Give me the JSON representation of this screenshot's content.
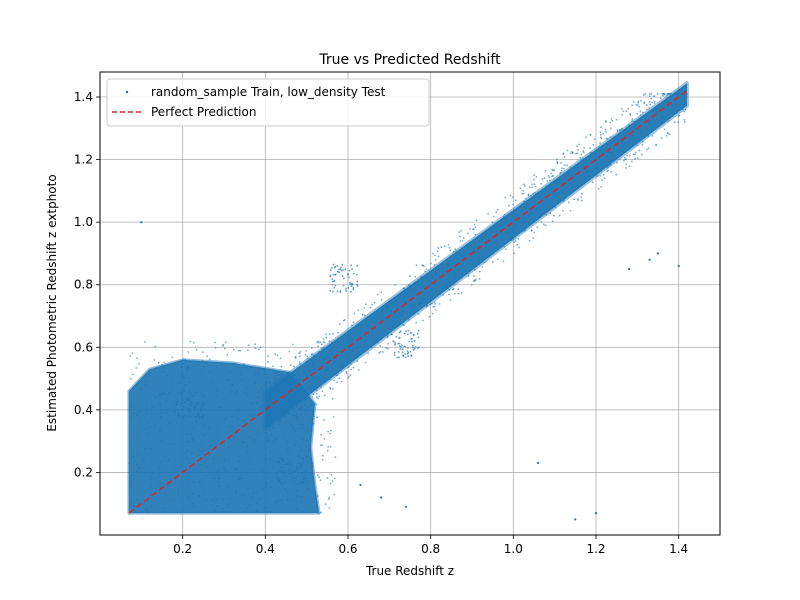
{
  "chart_data": {
    "type": "scatter",
    "title": "True vs Predicted Redshift",
    "xlabel": "True Redshift z",
    "ylabel": "Estimated Photometric Redshift z extphoto",
    "xlim": [
      0.0,
      1.5
    ],
    "ylim": [
      0.0,
      1.48
    ],
    "xticks": [
      "0.2",
      "0.4",
      "0.6",
      "0.8",
      "1.0",
      "1.2",
      "1.4"
    ],
    "yticks": [
      "0.2",
      "0.4",
      "0.6",
      "0.8",
      "1.0",
      "1.2",
      "1.4"
    ],
    "grid": true,
    "legend_position": "top-left",
    "series": [
      {
        "name": "random_sample Train, low_density Test",
        "kind": "scatter",
        "color": "#1f77b4",
        "regions": [
          {
            "shape": "polygon",
            "vertices": [
              [
                0.07,
                0.07
              ],
              [
                0.53,
                0.07
              ],
              [
                0.52,
                0.16
              ],
              [
                0.51,
                0.28
              ],
              [
                0.52,
                0.42
              ],
              [
                0.46,
                0.52
              ],
              [
                0.32,
                0.55
              ],
              [
                0.2,
                0.56
              ],
              [
                0.12,
                0.53
              ],
              [
                0.07,
                0.46
              ]
            ]
          },
          {
            "shape": "band",
            "x_range": [
              0.4,
              1.42
            ],
            "center": "y = x",
            "half_width": 0.06
          }
        ],
        "clumps": [
          {
            "x": 0.59,
            "y": 0.82
          },
          {
            "x": 0.74,
            "y": 0.61
          },
          {
            "x": 0.22,
            "y": 0.42
          },
          {
            "x": 0.46,
            "y": 0.21
          }
        ],
        "outliers": [
          [
            0.1,
            1.0
          ],
          [
            1.06,
            0.23
          ],
          [
            1.15,
            0.05
          ],
          [
            1.2,
            0.07
          ],
          [
            1.28,
            0.85
          ],
          [
            1.33,
            0.88
          ],
          [
            1.35,
            0.9
          ],
          [
            1.4,
            0.86
          ],
          [
            0.63,
            0.16
          ],
          [
            0.68,
            0.12
          ],
          [
            0.74,
            0.09
          ]
        ]
      },
      {
        "name": "Perfect Prediction",
        "kind": "line",
        "style": "dashed",
        "color": "#d62728",
        "x": [
          0.07,
          1.42
        ],
        "y": [
          0.07,
          1.42
        ]
      }
    ]
  }
}
